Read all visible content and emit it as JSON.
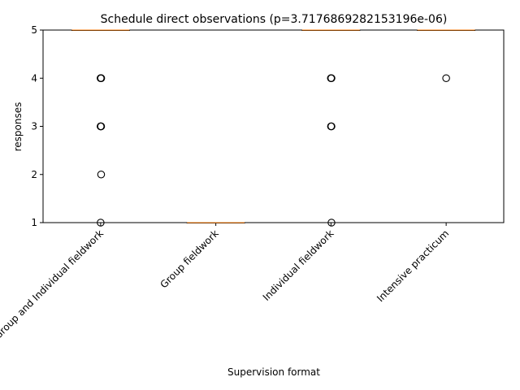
{
  "chart_data": {
    "type": "box",
    "title": "Schedule direct observations (p=3.7176869282153196e-06)",
    "xlabel": "Supervision format",
    "ylabel": "responses",
    "ylim": [
      1,
      5
    ],
    "yticks": [
      1,
      2,
      3,
      4,
      5
    ],
    "categories": [
      "Group and Individual fieldwork",
      "Group fieldwork",
      "Individual fieldwork",
      "Intensive practicum"
    ],
    "boxes": [
      {
        "median": 5,
        "q1": 5,
        "q3": 5,
        "whisker_low": 5,
        "whisker_high": 5,
        "outliers": [
          4,
          4,
          4,
          4,
          3,
          3,
          3,
          2,
          1
        ]
      },
      {
        "median": 1,
        "q1": 1,
        "q3": 1,
        "whisker_low": 1,
        "whisker_high": 1,
        "outliers": []
      },
      {
        "median": 5,
        "q1": 5,
        "q3": 5,
        "whisker_low": 5,
        "whisker_high": 5,
        "outliers": [
          4,
          4,
          4,
          3,
          3,
          1
        ]
      },
      {
        "median": 5,
        "q1": 5,
        "q3": 5,
        "whisker_low": 5,
        "whisker_high": 5,
        "outliers": [
          4
        ]
      }
    ],
    "colors": {
      "axis": "#000000",
      "median": "#ff7f0e",
      "box": "#000000"
    },
    "grid": false
  }
}
